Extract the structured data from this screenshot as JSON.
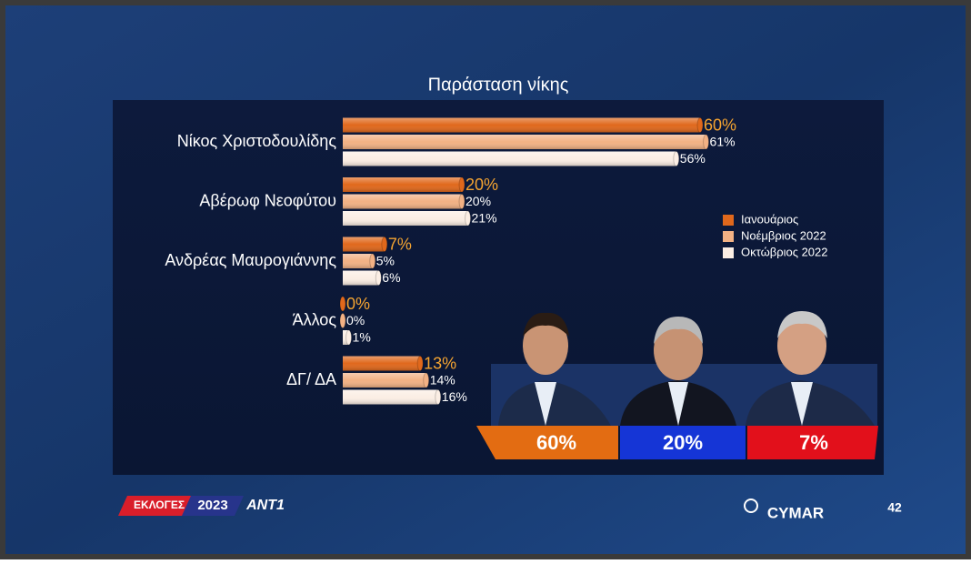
{
  "chart_data": {
    "type": "bar",
    "orientation": "horizontal",
    "title": "Παράσταση νίκης",
    "categories": [
      "Νίκος Χριστοδουλίδης",
      "Αβέρωφ Νεοφύτου",
      "Ανδρέας Μαυρογιάννης",
      "Άλλος",
      "ΔΓ/ ΔΑ"
    ],
    "series": [
      {
        "name": "Ιανουάριος",
        "color": "#e0681c",
        "values": [
          60,
          20,
          7,
          0,
          13
        ],
        "value_labels": [
          "60%",
          "20%",
          "7%",
          "0%",
          "13%"
        ]
      },
      {
        "name": "Νοέμβριος 2022",
        "color": "#f2b184",
        "values": [
          61,
          20,
          5,
          0,
          14
        ],
        "value_labels": [
          "61%",
          "20%",
          "5%",
          "0%",
          "14%"
        ]
      },
      {
        "name": "Οκτώβριος 2022",
        "color": "#fbeee4",
        "values": [
          56,
          21,
          6,
          1,
          16
        ],
        "value_labels": [
          "56%",
          "21%",
          "6%",
          "1%",
          "16%"
        ]
      }
    ],
    "legend": "right"
  },
  "banner": [
    "60%",
    "20%",
    "7%"
  ],
  "footer": {
    "badge": "ΕΚΛΟΓΕΣ",
    "year": "2023",
    "channel": "ΑΝΤ1",
    "source": "CYMAR",
    "page": "42"
  }
}
